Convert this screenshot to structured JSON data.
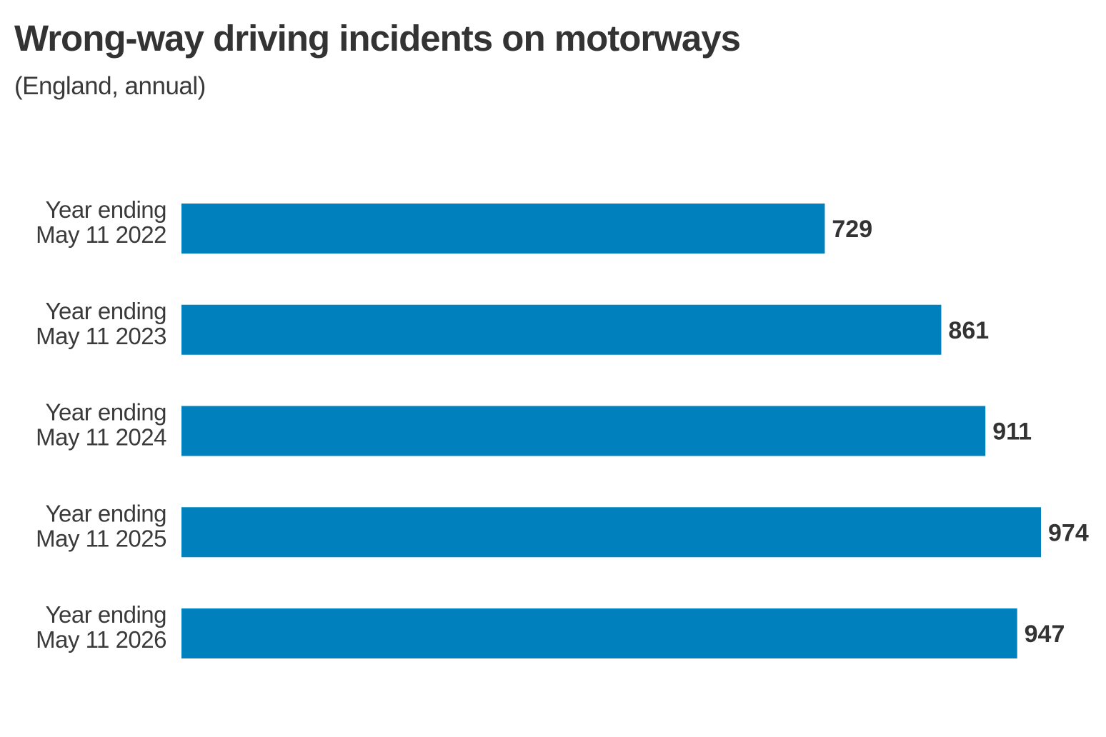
{
  "chart_data": {
    "type": "bar",
    "orientation": "horizontal",
    "title": "Wrong-way driving incidents on motorways",
    "subtitle": "(England, annual)",
    "categories": [
      [
        "Year ending",
        "May 11 2022"
      ],
      [
        "Year ending",
        "May 11 2023"
      ],
      [
        "Year ending",
        "May 11 2024"
      ],
      [
        "Year ending",
        "May 11 2025"
      ],
      [
        "Year ending",
        "May 11 2026"
      ]
    ],
    "values": [
      729,
      861,
      911,
      974,
      947
    ],
    "value_labels": [
      "729",
      "861",
      "911",
      "974",
      "947"
    ],
    "xlim": [
      0,
      974
    ],
    "grid": false,
    "legend": "none",
    "bar_color": "#0080bd"
  }
}
